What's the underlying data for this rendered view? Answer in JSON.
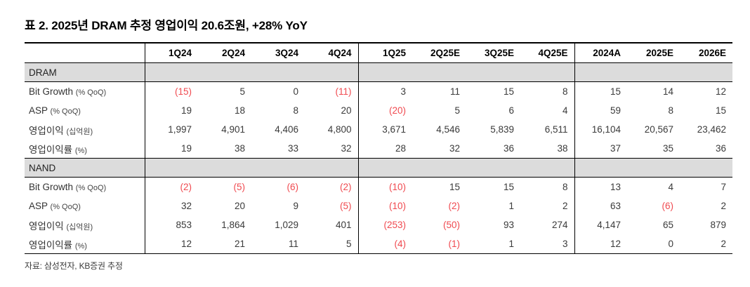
{
  "title": "표 2. 2025년 DRAM 추정 영업이익 20.6조원, +28% YoY",
  "footer": "자료: 삼성전자, KB증권 추정",
  "colors": {
    "negative_value": "#f04a50",
    "section_row_bg": "#dcdcdc",
    "border": "#000000",
    "data_text": "#3a3a3a"
  },
  "chart_data": {
    "type": "table",
    "columns": [
      "",
      "1Q24",
      "2Q24",
      "3Q24",
      "4Q24",
      "1Q25",
      "2Q25E",
      "3Q25E",
      "4Q25E",
      "2024A",
      "2025E",
      "2026E"
    ],
    "divider_after_columns": [
      0,
      4,
      8
    ],
    "sections": [
      {
        "name": "DRAM",
        "rows": [
          {
            "label": "Bit Growth",
            "label_sub": "(% QoQ)",
            "values": [
              "(15)",
              "5",
              "0",
              "(11)",
              "3",
              "11",
              "15",
              "8",
              "15",
              "14",
              "12"
            ]
          },
          {
            "label": "ASP",
            "label_sub": "(% QoQ)",
            "values": [
              "19",
              "18",
              "8",
              "20",
              "(20)",
              "5",
              "6",
              "4",
              "59",
              "8",
              "15"
            ]
          },
          {
            "label": "영업이익",
            "label_sub": "(십억원)",
            "values": [
              "1,997",
              "4,901",
              "4,406",
              "4,800",
              "3,671",
              "4,546",
              "5,839",
              "6,511",
              "16,104",
              "20,567",
              "23,462"
            ]
          },
          {
            "label": "영업이익률",
            "label_sub": "(%)",
            "values": [
              "19",
              "38",
              "33",
              "32",
              "28",
              "32",
              "36",
              "38",
              "37",
              "35",
              "36"
            ]
          }
        ]
      },
      {
        "name": "NAND",
        "rows": [
          {
            "label": "Bit Growth",
            "label_sub": "(% QoQ)",
            "values": [
              "(2)",
              "(5)",
              "(6)",
              "(2)",
              "(10)",
              "15",
              "15",
              "8",
              "13",
              "4",
              "7"
            ]
          },
          {
            "label": "ASP",
            "label_sub": "(% QoQ)",
            "values": [
              "32",
              "20",
              "9",
              "(5)",
              "(10)",
              "(2)",
              "1",
              "2",
              "63",
              "(6)",
              "2"
            ]
          },
          {
            "label": "영업이익",
            "label_sub": "(십억원)",
            "values": [
              "853",
              "1,864",
              "1,029",
              "401",
              "(253)",
              "(50)",
              "93",
              "274",
              "4,147",
              "65",
              "879"
            ]
          },
          {
            "label": "영업이익률",
            "label_sub": "(%)",
            "values": [
              "12",
              "21",
              "11",
              "5",
              "(4)",
              "(1)",
              "1",
              "3",
              "12",
              "0",
              "2"
            ]
          }
        ]
      }
    ]
  }
}
